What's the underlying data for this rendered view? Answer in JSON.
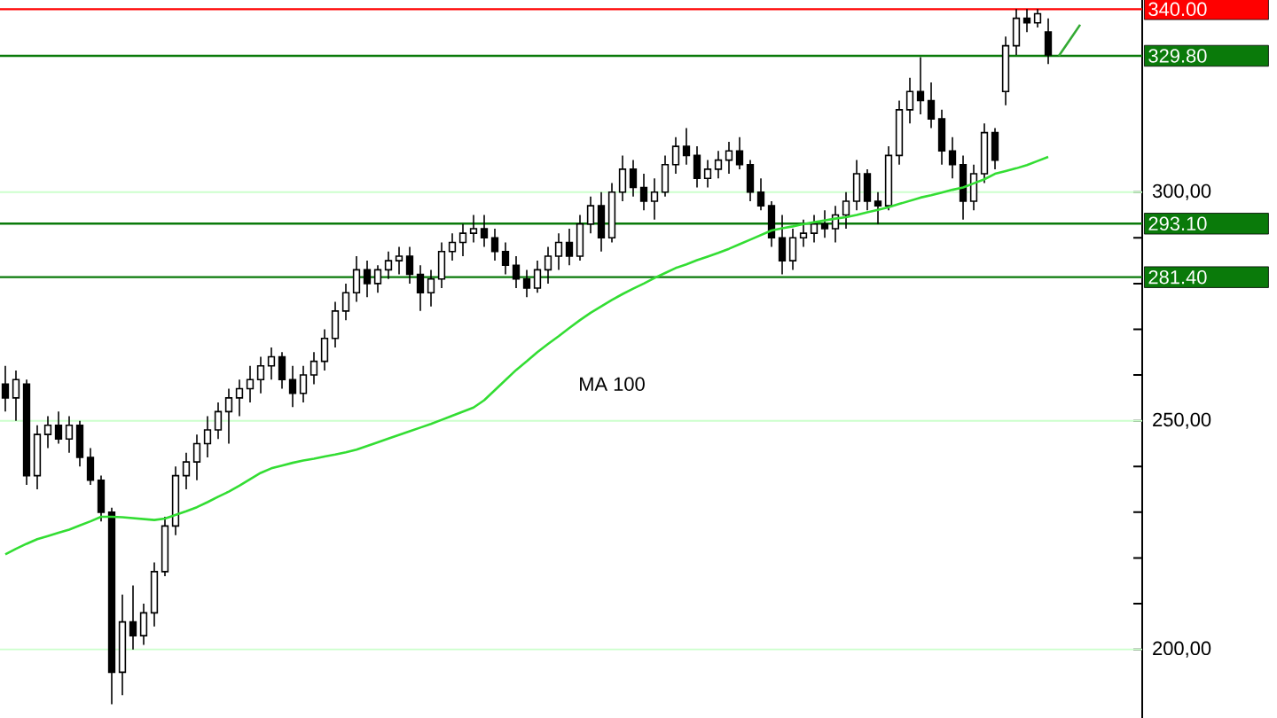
{
  "chart_data": {
    "type": "candlestick",
    "color": "#000000",
    "categories": [
      null,
      null,
      null,
      null,
      null,
      null,
      null,
      null,
      null,
      null,
      null,
      null,
      null,
      null,
      null,
      null,
      null,
      null,
      null,
      null,
      null,
      null,
      null,
      null,
      null,
      null,
      null,
      null,
      null,
      null,
      null,
      null,
      null,
      null,
      null,
      null,
      null,
      null,
      null,
      null,
      null,
      null,
      null,
      null,
      null,
      null,
      null,
      null,
      null,
      null,
      null,
      null,
      null,
      null,
      null,
      null,
      null,
      null,
      null,
      null,
      null,
      null,
      null,
      null,
      null,
      null,
      null,
      null,
      null,
      null,
      null,
      null,
      null,
      null,
      null,
      null,
      null,
      null,
      null,
      null,
      null,
      null,
      null,
      null,
      null,
      null,
      null,
      null,
      null,
      null,
      null,
      null,
      null,
      null,
      null,
      null,
      null,
      null,
      null,
      null,
      null,
      null
    ],
    "ohlc": [
      [
        258,
        262,
        252,
        255
      ],
      [
        255,
        261,
        250,
        259
      ],
      [
        258,
        259,
        236,
        238
      ],
      [
        238,
        249,
        235,
        247
      ],
      [
        247,
        251,
        244,
        249
      ],
      [
        249,
        252,
        245,
        246
      ],
      [
        246,
        251,
        243,
        249
      ],
      [
        249,
        250,
        240,
        242
      ],
      [
        242,
        244,
        236,
        237
      ],
      [
        237,
        238,
        228,
        230
      ],
      [
        230,
        231,
        188,
        195
      ],
      [
        195,
        212,
        190,
        206
      ],
      [
        206,
        214,
        200,
        203
      ],
      [
        203,
        210,
        201,
        208
      ],
      [
        208,
        219,
        205,
        217
      ],
      [
        217,
        229,
        216,
        227
      ],
      [
        227,
        240,
        225,
        238
      ],
      [
        238,
        243,
        235,
        241
      ],
      [
        241,
        247,
        237,
        245
      ],
      [
        245,
        251,
        242,
        248
      ],
      [
        248,
        254,
        246,
        252
      ],
      [
        252,
        257,
        245,
        255
      ],
      [
        255,
        259,
        251,
        257
      ],
      [
        257,
        262,
        254,
        259
      ],
      [
        259,
        264,
        256,
        262
      ],
      [
        262,
        266,
        259,
        264
      ],
      [
        264,
        265,
        257,
        259
      ],
      [
        259,
        262,
        253,
        256
      ],
      [
        256,
        262,
        254,
        260
      ],
      [
        260,
        265,
        258,
        263
      ],
      [
        263,
        270,
        261,
        268
      ],
      [
        268,
        276,
        266,
        274
      ],
      [
        274,
        280,
        272,
        278
      ],
      [
        278,
        286,
        276,
        283
      ],
      [
        283,
        285,
        277,
        280
      ],
      [
        280,
        284,
        278,
        283
      ],
      [
        283,
        287,
        281,
        285
      ],
      [
        285,
        288,
        282,
        286
      ],
      [
        286,
        288,
        280,
        282
      ],
      [
        282,
        284,
        274,
        278
      ],
      [
        278,
        283,
        275,
        281
      ],
      [
        281,
        289,
        279,
        287
      ],
      [
        287,
        291,
        285,
        289
      ],
      [
        289,
        293,
        286,
        291
      ],
      [
        291,
        295,
        289,
        292
      ],
      [
        292,
        295,
        288,
        290
      ],
      [
        290,
        292,
        285,
        287
      ],
      [
        287,
        289,
        282,
        284
      ],
      [
        284,
        286,
        279,
        281
      ],
      [
        281,
        283,
        277,
        279
      ],
      [
        279,
        285,
        278,
        283
      ],
      [
        283,
        288,
        280,
        286
      ],
      [
        286,
        291,
        283,
        289
      ],
      [
        289,
        292,
        284,
        286
      ],
      [
        286,
        295,
        285,
        293
      ],
      [
        293,
        299,
        291,
        297
      ],
      [
        297,
        300,
        287,
        290
      ],
      [
        290,
        302,
        289,
        300
      ],
      [
        300,
        308,
        298,
        305
      ],
      [
        305,
        307,
        299,
        301
      ],
      [
        301,
        304,
        296,
        298
      ],
      [
        298,
        303,
        294,
        300
      ],
      [
        300,
        308,
        299,
        306
      ],
      [
        306,
        312,
        304,
        310
      ],
      [
        310,
        314,
        306,
        308
      ],
      [
        308,
        310,
        301,
        303
      ],
      [
        303,
        307,
        301,
        305
      ],
      [
        305,
        309,
        303,
        307
      ],
      [
        307,
        311,
        304,
        309
      ],
      [
        309,
        312,
        305,
        306
      ],
      [
        306,
        307,
        298,
        300
      ],
      [
        300,
        303,
        296,
        297
      ],
      [
        297,
        298,
        288,
        290
      ],
      [
        290,
        295,
        282,
        285
      ],
      [
        285,
        292,
        283,
        290
      ],
      [
        290,
        294,
        288,
        291
      ],
      [
        291,
        295,
        289,
        293
      ],
      [
        293,
        296,
        290,
        292
      ],
      [
        292,
        297,
        289,
        295
      ],
      [
        295,
        300,
        292,
        298
      ],
      [
        298,
        307,
        296,
        304
      ],
      [
        304,
        305,
        296,
        298
      ],
      [
        298,
        300,
        293,
        297
      ],
      [
        297,
        310,
        296,
        308
      ],
      [
        308,
        320,
        306,
        318
      ],
      [
        318,
        325,
        315,
        322
      ],
      [
        322,
        329.5,
        317,
        320
      ],
      [
        320,
        324,
        314,
        316
      ],
      [
        316,
        318,
        306,
        309
      ],
      [
        309,
        312,
        303,
        306
      ],
      [
        306,
        308,
        294,
        298
      ],
      [
        298,
        306,
        296,
        304
      ],
      [
        304,
        315,
        302,
        313
      ],
      [
        313,
        314,
        305,
        307
      ],
      [
        322,
        334,
        319,
        332
      ],
      [
        332,
        340,
        330,
        338
      ],
      [
        338,
        340,
        335,
        337
      ],
      [
        337,
        340,
        336,
        339
      ],
      [
        335,
        338,
        328,
        330
      ],
      null,
      null,
      null
    ],
    "series": [
      {
        "type": "line",
        "name": "MA 100",
        "color": "#33dd33",
        "values": [
          220.8,
          222.0,
          223.1,
          224.1,
          224.8,
          225.5,
          226.2,
          227.1,
          228.0,
          229.0,
          229.0,
          228.9,
          228.7,
          228.5,
          228.3,
          228.6,
          229.4,
          230.2,
          231.1,
          232.2,
          233.4,
          234.5,
          235.8,
          237.2,
          238.6,
          239.6,
          240.2,
          240.8,
          241.3,
          241.7,
          242.2,
          242.6,
          243.1,
          243.7,
          244.5,
          245.3,
          246.1,
          246.9,
          247.7,
          248.5,
          249.3,
          250.2,
          251.1,
          252.0,
          252.9,
          254.5,
          256.7,
          258.9,
          261.1,
          263.0,
          265.0,
          266.8,
          268.5,
          270.3,
          272.0,
          273.6,
          275.0,
          276.4,
          277.7,
          278.9,
          280.0,
          281.2,
          282.3,
          283.4,
          284.2,
          285.1,
          285.9,
          286.7,
          287.6,
          288.6,
          289.6,
          290.6,
          291.6,
          292.1,
          292.5,
          293.0,
          293.4,
          293.8,
          294.2,
          294.5,
          295.0,
          295.6,
          296.1,
          296.7,
          297.4,
          298.1,
          298.8,
          299.3,
          299.9,
          300.5,
          301.0,
          301.9,
          302.8,
          304.0,
          304.6,
          305.2,
          305.9,
          306.8,
          307.7,
          null,
          null,
          null
        ]
      },
      {
        "type": "line",
        "color": "#33aa33",
        "values": [
          null,
          null,
          null,
          null,
          null,
          null,
          null,
          null,
          null,
          null,
          null,
          null,
          null,
          null,
          null,
          null,
          null,
          null,
          null,
          null,
          null,
          null,
          null,
          null,
          null,
          null,
          null,
          null,
          null,
          null,
          null,
          null,
          null,
          null,
          null,
          null,
          null,
          null,
          null,
          null,
          null,
          null,
          null,
          null,
          null,
          null,
          null,
          null,
          null,
          null,
          null,
          null,
          null,
          null,
          null,
          null,
          null,
          null,
          null,
          null,
          null,
          null,
          null,
          null,
          null,
          null,
          null,
          null,
          null,
          null,
          null,
          null,
          null,
          null,
          null,
          null,
          null,
          null,
          null,
          null,
          null,
          null,
          null,
          null,
          null,
          null,
          null,
          null,
          null,
          null,
          null,
          null,
          null,
          null,
          null,
          null,
          null,
          null,
          null,
          329.8,
          333.2,
          336.6
        ]
      }
    ],
    "ylim": [
      185,
      342
    ],
    "yticks": [
      {
        "value": 200,
        "label": "200,00"
      },
      {
        "value": 250,
        "label": "250,00"
      },
      {
        "value": 300,
        "label": "300,00"
      }
    ],
    "grid": "y",
    "ref_lines": [
      {
        "axis": "y",
        "value": 340,
        "label": "340.00",
        "color": "#ff0000"
      },
      {
        "axis": "y",
        "value": 329.8,
        "label": "329.80",
        "color": "#0a7a0a"
      },
      {
        "axis": "y",
        "value": 293.1,
        "label": "293.10",
        "color": "#0a7a0a"
      },
      {
        "axis": "y",
        "value": 281.4,
        "label": "281.40",
        "color": "#0a7a0a"
      }
    ]
  }
}
